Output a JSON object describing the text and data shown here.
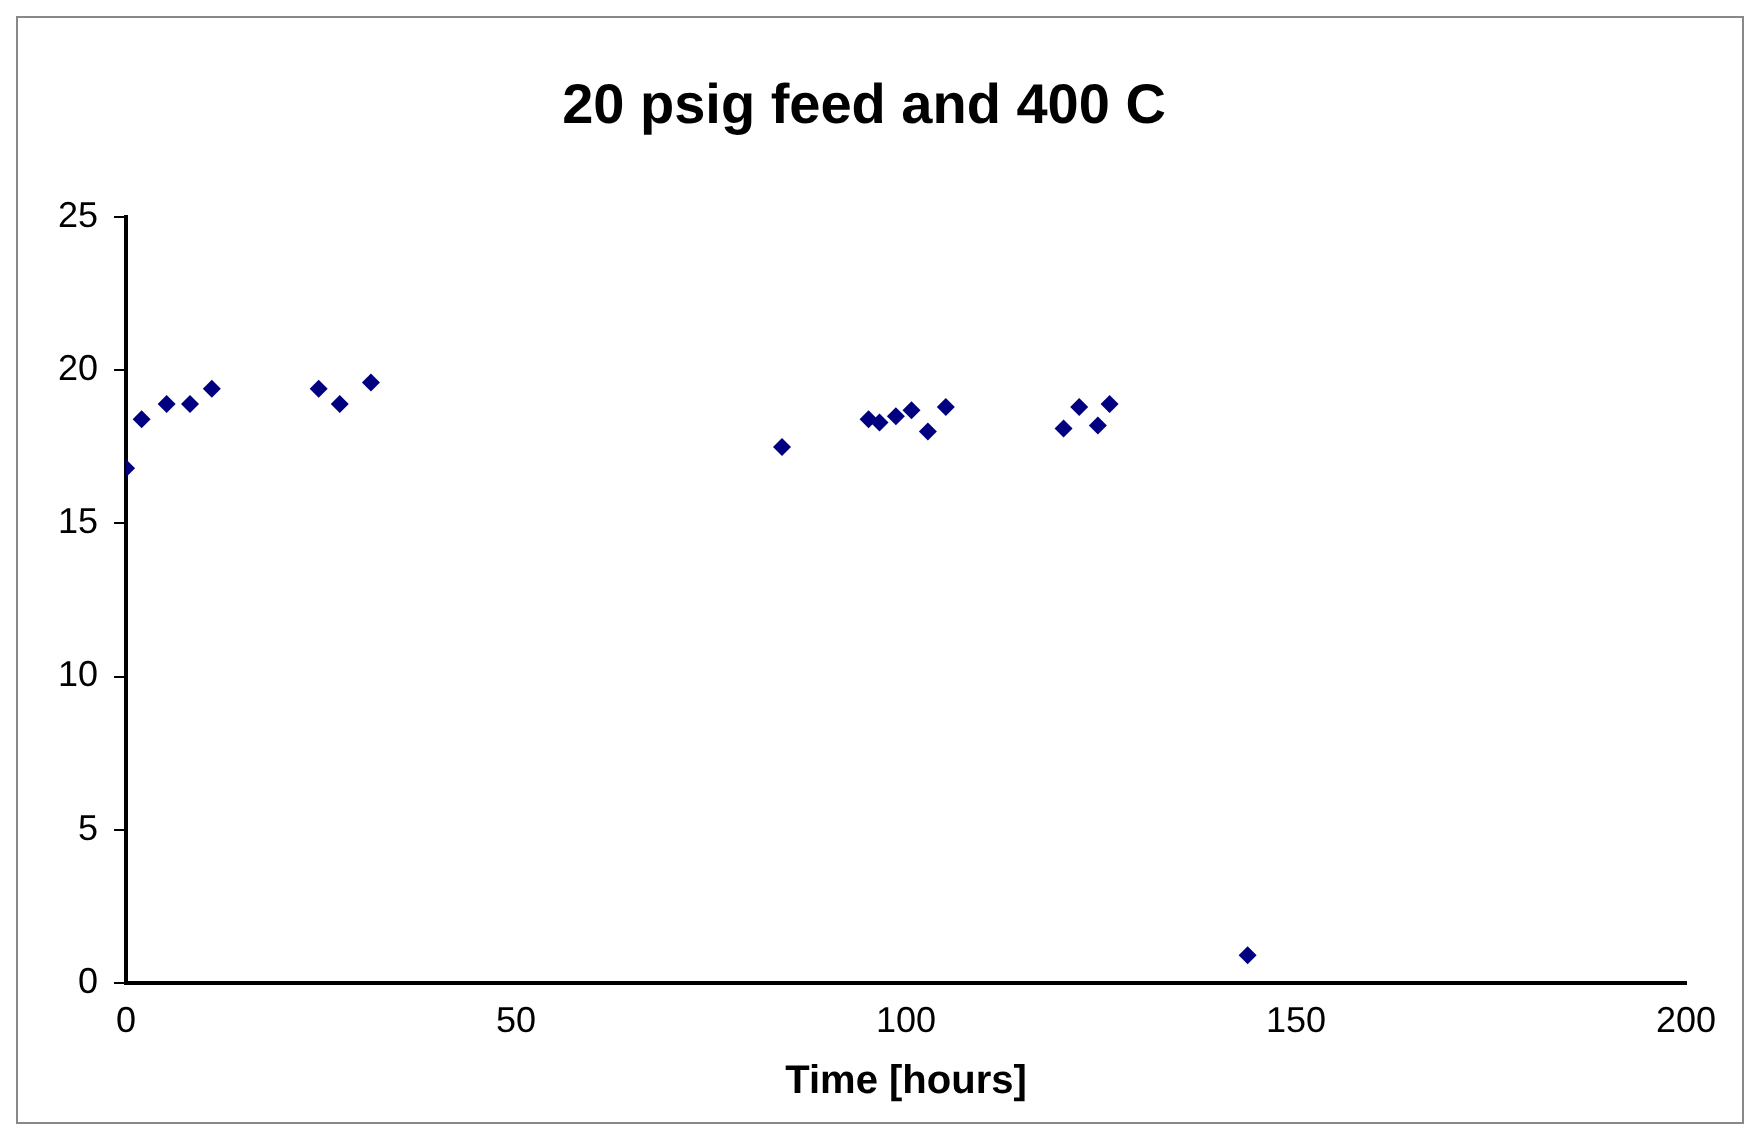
{
  "chart_data": {
    "type": "scatter",
    "title": "20 psig feed and 400 C",
    "xlabel": "Time [hours]",
    "x": [
      0,
      2,
      5.2,
      8.2,
      11,
      24.7,
      27.4,
      31.4,
      84.1,
      95.2,
      96.6,
      98.7,
      100.7,
      102.8,
      105.1,
      120.2,
      122.2,
      124.6,
      126.1,
      143.8
    ],
    "series": [
      {
        "color": "#000080",
        "values": [
          16.8,
          18.4,
          18.9,
          18.9,
          19.4,
          19.4,
          18.9,
          19.6,
          17.5,
          18.4,
          18.3,
          18.5,
          18.7,
          18.0,
          18.8,
          18.1,
          18.8,
          18.2,
          18.9,
          0.9
        ]
      }
    ],
    "xlim": [
      0,
      200
    ],
    "xticks": [
      0,
      50,
      100,
      150,
      200
    ],
    "ylim": [
      0,
      25
    ],
    "yticks": [
      0,
      5,
      10,
      15,
      20,
      25
    ],
    "marker": "diamond",
    "grid": false,
    "legend": false
  }
}
